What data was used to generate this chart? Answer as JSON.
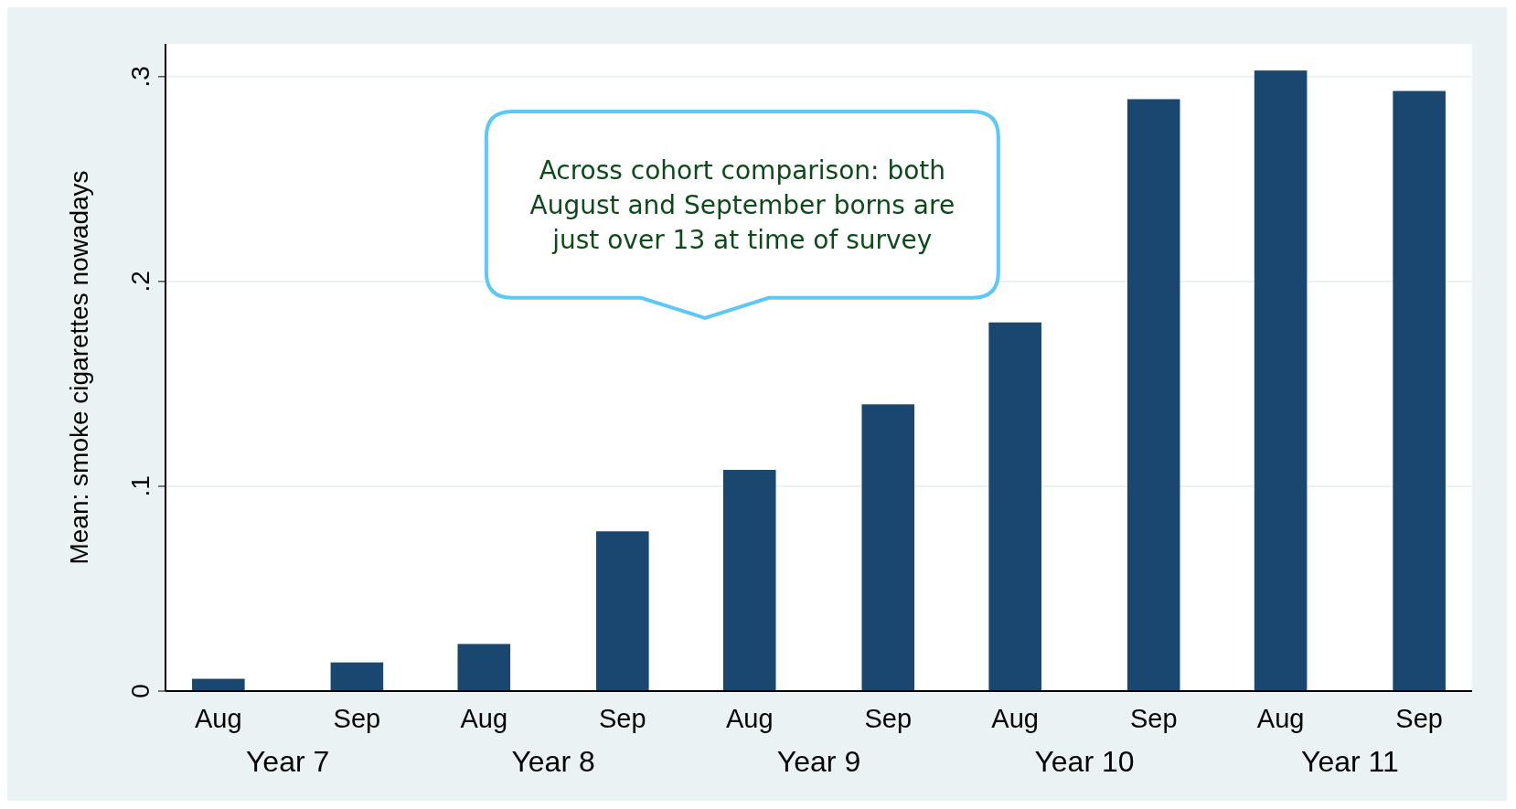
{
  "chart_data": {
    "type": "bar",
    "ylabel": "Mean: smoke cigarettes nowadays",
    "categories": [
      "Year 7",
      "Year 8",
      "Year 9",
      "Year 10",
      "Year 11"
    ],
    "series": [
      {
        "name": "Aug",
        "color": "#1a476f",
        "values": [
          0.006,
          0.023,
          0.108,
          0.18,
          0.303
        ]
      },
      {
        "name": "Sep",
        "color": "#1a476f",
        "values": [
          0.014,
          0.078,
          0.14,
          0.289,
          0.293
        ]
      }
    ],
    "ylim": [
      0,
      0.316
    ],
    "yticks": [
      {
        "value": 0,
        "label": "0"
      },
      {
        "value": 0.1,
        "label": ".1"
      },
      {
        "value": 0.2,
        "label": ".2"
      },
      {
        "value": 0.3,
        "label": ".3"
      }
    ],
    "grid": "y",
    "annotations": [
      "Across cohort comparison: both August and September borns are just over 13 at time of survey"
    ]
  }
}
